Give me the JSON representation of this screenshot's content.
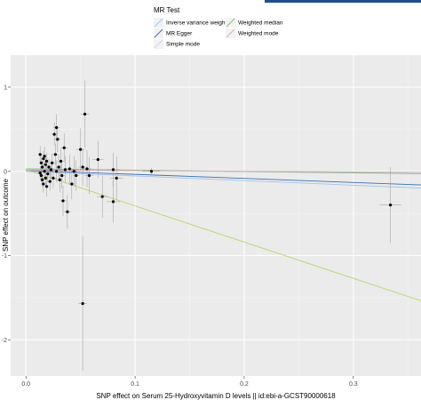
{
  "chart_data": {
    "type": "scatter",
    "xlabel": "SNP effect on Serum 25-Hydroxyvitamin D levels || id:ebi-a-GCST90000618",
    "ylabel": "SNP effect on outcome",
    "xlim": [
      -0.014,
      0.362
    ],
    "ylim": [
      -2.43,
      1.38
    ],
    "x_ticks": [
      0.0,
      0.1,
      0.2,
      0.3
    ],
    "x_tick_labels": [
      "0.0",
      "0.1",
      "0.2",
      "0.3"
    ],
    "y_ticks": [
      1,
      0,
      -1,
      -2
    ],
    "y_tick_labels": [
      "1",
      "0",
      "-1",
      "-2"
    ],
    "grid": true,
    "legend": {
      "title": "MR Test",
      "placement": "top",
      "entries": [
        {
          "label": "Inverse variance weighted",
          "color": "#a3c2ea"
        },
        {
          "label": "MR Egger",
          "color": "#3b6fb6"
        },
        {
          "label": "Simple mode",
          "color": "#c8d8f0"
        },
        {
          "label": "Weighted median",
          "color": "#7fc07f"
        },
        {
          "label": "Weighted mode",
          "color": "#e0a8b8"
        }
      ]
    },
    "series": [
      {
        "name": "Inverse variance weighted",
        "color": "#a3c2ea",
        "intercept": 0.0,
        "slope": -0.55
      },
      {
        "name": "MR Egger",
        "color": "#3b6fb6",
        "intercept": 0.012,
        "slope": -0.48
      },
      {
        "name": "Simple mode",
        "color": "#c8d8f0",
        "intercept": 0.02,
        "slope": -0.12
      },
      {
        "name": "Weighted median",
        "color": "#7fc07f",
        "intercept": 0.03,
        "slope": -0.16
      },
      {
        "name": "Weighted mode",
        "color": "#e0a8b8",
        "intercept": 0.015,
        "slope": -0.07
      },
      {
        "name": "",
        "color": "#b5d86a",
        "intercept": 0.02,
        "slope": -4.3
      }
    ],
    "points": [
      {
        "x": 0.013,
        "y": 0.2,
        "xerr": 0.002,
        "yerr": 0.1
      },
      {
        "x": 0.014,
        "y": 0.1,
        "xerr": 0.002,
        "yerr": 0.08
      },
      {
        "x": 0.015,
        "y": 0.05,
        "xerr": 0.002,
        "yerr": 0.07
      },
      {
        "x": 0.016,
        "y": 0.15,
        "xerr": 0.002,
        "yerr": 0.09
      },
      {
        "x": 0.014,
        "y": -0.05,
        "xerr": 0.002,
        "yerr": 0.08
      },
      {
        "x": 0.015,
        "y": -0.1,
        "xerr": 0.002,
        "yerr": 0.09
      },
      {
        "x": 0.016,
        "y": -0.15,
        "xerr": 0.002,
        "yerr": 0.1
      },
      {
        "x": 0.017,
        "y": 0.0,
        "xerr": 0.002,
        "yerr": 0.08
      },
      {
        "x": 0.018,
        "y": 0.08,
        "xerr": 0.002,
        "yerr": 0.09
      },
      {
        "x": 0.018,
        "y": -0.08,
        "xerr": 0.002,
        "yerr": 0.09
      },
      {
        "x": 0.019,
        "y": 0.12,
        "xerr": 0.002,
        "yerr": 0.1
      },
      {
        "x": 0.02,
        "y": -0.03,
        "xerr": 0.002,
        "yerr": 0.1
      },
      {
        "x": 0.013,
        "y": -0.02,
        "xerr": 0.002,
        "yerr": 0.08
      },
      {
        "x": 0.017,
        "y": 0.18,
        "xerr": 0.002,
        "yerr": 0.11
      },
      {
        "x": 0.021,
        "y": 0.05,
        "xerr": 0.002,
        "yerr": 0.1
      },
      {
        "x": 0.022,
        "y": -0.12,
        "xerr": 0.002,
        "yerr": 0.11
      },
      {
        "x": 0.019,
        "y": -0.18,
        "xerr": 0.002,
        "yerr": 0.12
      },
      {
        "x": 0.023,
        "y": 0.02,
        "xerr": 0.002,
        "yerr": 0.1
      },
      {
        "x": 0.024,
        "y": 0.1,
        "xerr": 0.003,
        "yerr": 0.11
      },
      {
        "x": 0.025,
        "y": -0.08,
        "xerr": 0.003,
        "yerr": 0.12
      },
      {
        "x": 0.026,
        "y": 0.44,
        "xerr": 0.003,
        "yerr": 0.14
      },
      {
        "x": 0.028,
        "y": 0.52,
        "xerr": 0.003,
        "yerr": 0.16
      },
      {
        "x": 0.029,
        "y": 0.38,
        "xerr": 0.003,
        "yerr": 0.15
      },
      {
        "x": 0.027,
        "y": 0.2,
        "xerr": 0.003,
        "yerr": 0.13
      },
      {
        "x": 0.028,
        "y": 0.0,
        "xerr": 0.003,
        "yerr": 0.13
      },
      {
        "x": 0.03,
        "y": 0.05,
        "xerr": 0.003,
        "yerr": 0.14
      },
      {
        "x": 0.031,
        "y": -0.1,
        "xerr": 0.003,
        "yerr": 0.15
      },
      {
        "x": 0.032,
        "y": 0.12,
        "xerr": 0.003,
        "yerr": 0.15
      },
      {
        "x": 0.033,
        "y": -0.05,
        "xerr": 0.003,
        "yerr": 0.15
      },
      {
        "x": 0.034,
        "y": -0.35,
        "xerr": 0.003,
        "yerr": 0.18
      },
      {
        "x": 0.035,
        "y": 0.28,
        "xerr": 0.003,
        "yerr": 0.17
      },
      {
        "x": 0.036,
        "y": 0.02,
        "xerr": 0.003,
        "yerr": 0.16
      },
      {
        "x": 0.038,
        "y": -0.48,
        "xerr": 0.003,
        "yerr": 0.2
      },
      {
        "x": 0.04,
        "y": 0.03,
        "xerr": 0.003,
        "yerr": 0.17
      },
      {
        "x": 0.042,
        "y": -0.15,
        "xerr": 0.003,
        "yerr": 0.18
      },
      {
        "x": 0.044,
        "y": 0.0,
        "xerr": 0.003,
        "yerr": 0.18
      },
      {
        "x": 0.046,
        "y": -0.05,
        "xerr": 0.003,
        "yerr": 0.18
      },
      {
        "x": 0.05,
        "y": 0.26,
        "xerr": 0.004,
        "yerr": 0.25
      },
      {
        "x": 0.052,
        "y": 0.05,
        "xerr": 0.004,
        "yerr": 0.22
      },
      {
        "x": 0.054,
        "y": 0.68,
        "xerr": 0.004,
        "yerr": 0.4
      },
      {
        "x": 0.056,
        "y": 0.03,
        "xerr": 0.004,
        "yerr": 0.22
      },
      {
        "x": 0.058,
        "y": -0.05,
        "xerr": 0.004,
        "yerr": 0.22
      },
      {
        "x": 0.052,
        "y": -1.57,
        "xerr": 0.004,
        "yerr": 0.8
      },
      {
        "x": 0.066,
        "y": 0.14,
        "xerr": 0.005,
        "yerr": 0.22
      },
      {
        "x": 0.07,
        "y": -0.3,
        "xerr": 0.005,
        "yerr": 0.25
      },
      {
        "x": 0.08,
        "y": 0.02,
        "xerr": 0.006,
        "yerr": 0.2
      },
      {
        "x": 0.08,
        "y": -0.36,
        "xerr": 0.006,
        "yerr": 0.25
      },
      {
        "x": 0.083,
        "y": -0.08,
        "xerr": 0.006,
        "yerr": 0.26
      },
      {
        "x": 0.115,
        "y": 0.0,
        "xerr": 0.008,
        "yerr": 0.04
      },
      {
        "x": 0.334,
        "y": -0.4,
        "xerr": 0.01,
        "yerr": 0.45
      }
    ]
  }
}
